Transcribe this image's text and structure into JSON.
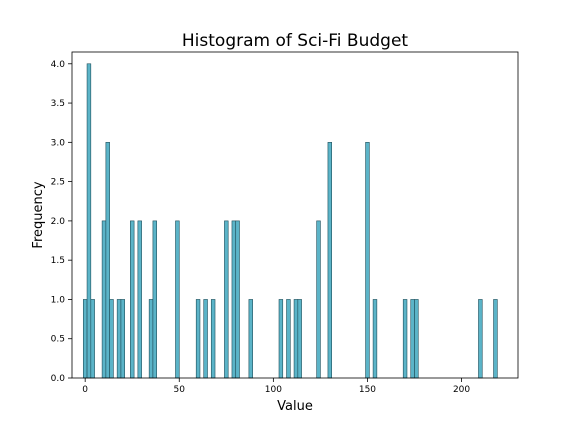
{
  "chart_data": {
    "type": "bar",
    "title": "Histogram of Sci-Fi Budget",
    "xlabel": "Value",
    "ylabel": "Frequency",
    "xlim": [
      -7,
      230
    ],
    "ylim": [
      0,
      4.15
    ],
    "x_ticks": [
      0,
      50,
      100,
      150,
      200
    ],
    "y_ticks": [
      0.0,
      0.5,
      1.0,
      1.5,
      2.0,
      2.5,
      3.0,
      3.5,
      4.0
    ],
    "y_tick_labels": [
      "0.0",
      "0.5",
      "1.0",
      "1.5",
      "2.0",
      "2.5",
      "3.0",
      "3.5",
      "4.0"
    ],
    "bin_width": 2,
    "bar_color": "#5bb4c8",
    "grid": false,
    "bins": [
      {
        "x": 0,
        "count": 1
      },
      {
        "x": 2,
        "count": 4
      },
      {
        "x": 4,
        "count": 1
      },
      {
        "x": 10,
        "count": 2
      },
      {
        "x": 12,
        "count": 3
      },
      {
        "x": 14,
        "count": 1
      },
      {
        "x": 18,
        "count": 1
      },
      {
        "x": 20,
        "count": 1
      },
      {
        "x": 25,
        "count": 2
      },
      {
        "x": 29,
        "count": 2
      },
      {
        "x": 35,
        "count": 1
      },
      {
        "x": 37,
        "count": 2
      },
      {
        "x": 49,
        "count": 2
      },
      {
        "x": 60,
        "count": 1
      },
      {
        "x": 64,
        "count": 1
      },
      {
        "x": 68,
        "count": 1
      },
      {
        "x": 75,
        "count": 2
      },
      {
        "x": 79,
        "count": 2
      },
      {
        "x": 81,
        "count": 2
      },
      {
        "x": 88,
        "count": 1
      },
      {
        "x": 104,
        "count": 1
      },
      {
        "x": 108,
        "count": 1
      },
      {
        "x": 112,
        "count": 1
      },
      {
        "x": 114,
        "count": 1
      },
      {
        "x": 124,
        "count": 2
      },
      {
        "x": 130,
        "count": 3
      },
      {
        "x": 150,
        "count": 3
      },
      {
        "x": 154,
        "count": 1
      },
      {
        "x": 170,
        "count": 1
      },
      {
        "x": 174,
        "count": 1
      },
      {
        "x": 176,
        "count": 1
      },
      {
        "x": 210,
        "count": 1
      },
      {
        "x": 218,
        "count": 1
      }
    ]
  }
}
